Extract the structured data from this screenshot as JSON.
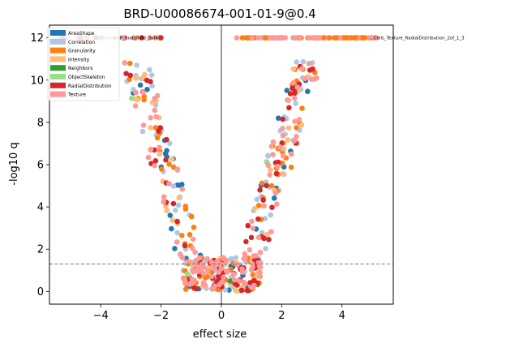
{
  "chart_data": {
    "type": "scatter",
    "title": "BRD-U00086674-001-01-9@0.4",
    "xlabel": "effect size",
    "ylabel": "-log10 q",
    "xlim": [
      -5.7,
      5.7
    ],
    "ylim": [
      -0.6,
      12.6
    ],
    "xticks": [
      -4,
      -2,
      0,
      2,
      4
    ],
    "yticks": [
      0,
      2,
      4,
      6,
      8,
      10,
      12
    ],
    "threshold_y": 1.3,
    "zero_line_x": 0,
    "grid": false,
    "legend_position": "top-left",
    "series": [
      {
        "name": "AreaShape",
        "color": "#1f77b4",
        "count": 45
      },
      {
        "name": "Correlation",
        "color": "#aec7e8",
        "count": 95
      },
      {
        "name": "Granularity",
        "color": "#ff7f0e",
        "count": 80
      },
      {
        "name": "Intensity",
        "color": "#ffbb78",
        "count": 65
      },
      {
        "name": "Neighbors",
        "color": "#2ca02c",
        "count": 3
      },
      {
        "name": "ObjectSkeleton",
        "color": "#98df8a",
        "count": 3
      },
      {
        "name": "RadialDistribution",
        "color": "#d62728",
        "count": 85
      },
      {
        "name": "Texture",
        "color": "#ff9896",
        "count": 125
      }
    ],
    "saturated_points": {
      "y": 12.0,
      "left_x_range": [
        -5.6,
        -1.9
      ],
      "right_x_range": [
        0.5,
        5.2
      ],
      "left_count": 25,
      "right_count": 90
    },
    "annotations": [
      {
        "text": "…Texture_AGP_Bodgfield_3of4",
        "x": -2.1,
        "y": 12.0,
        "anchor": "end"
      },
      {
        "text": "…Cells_Texture_RadialDistribution_2of_1_3",
        "x": 4.9,
        "y": 12.0,
        "anchor": "start"
      }
    ]
  }
}
